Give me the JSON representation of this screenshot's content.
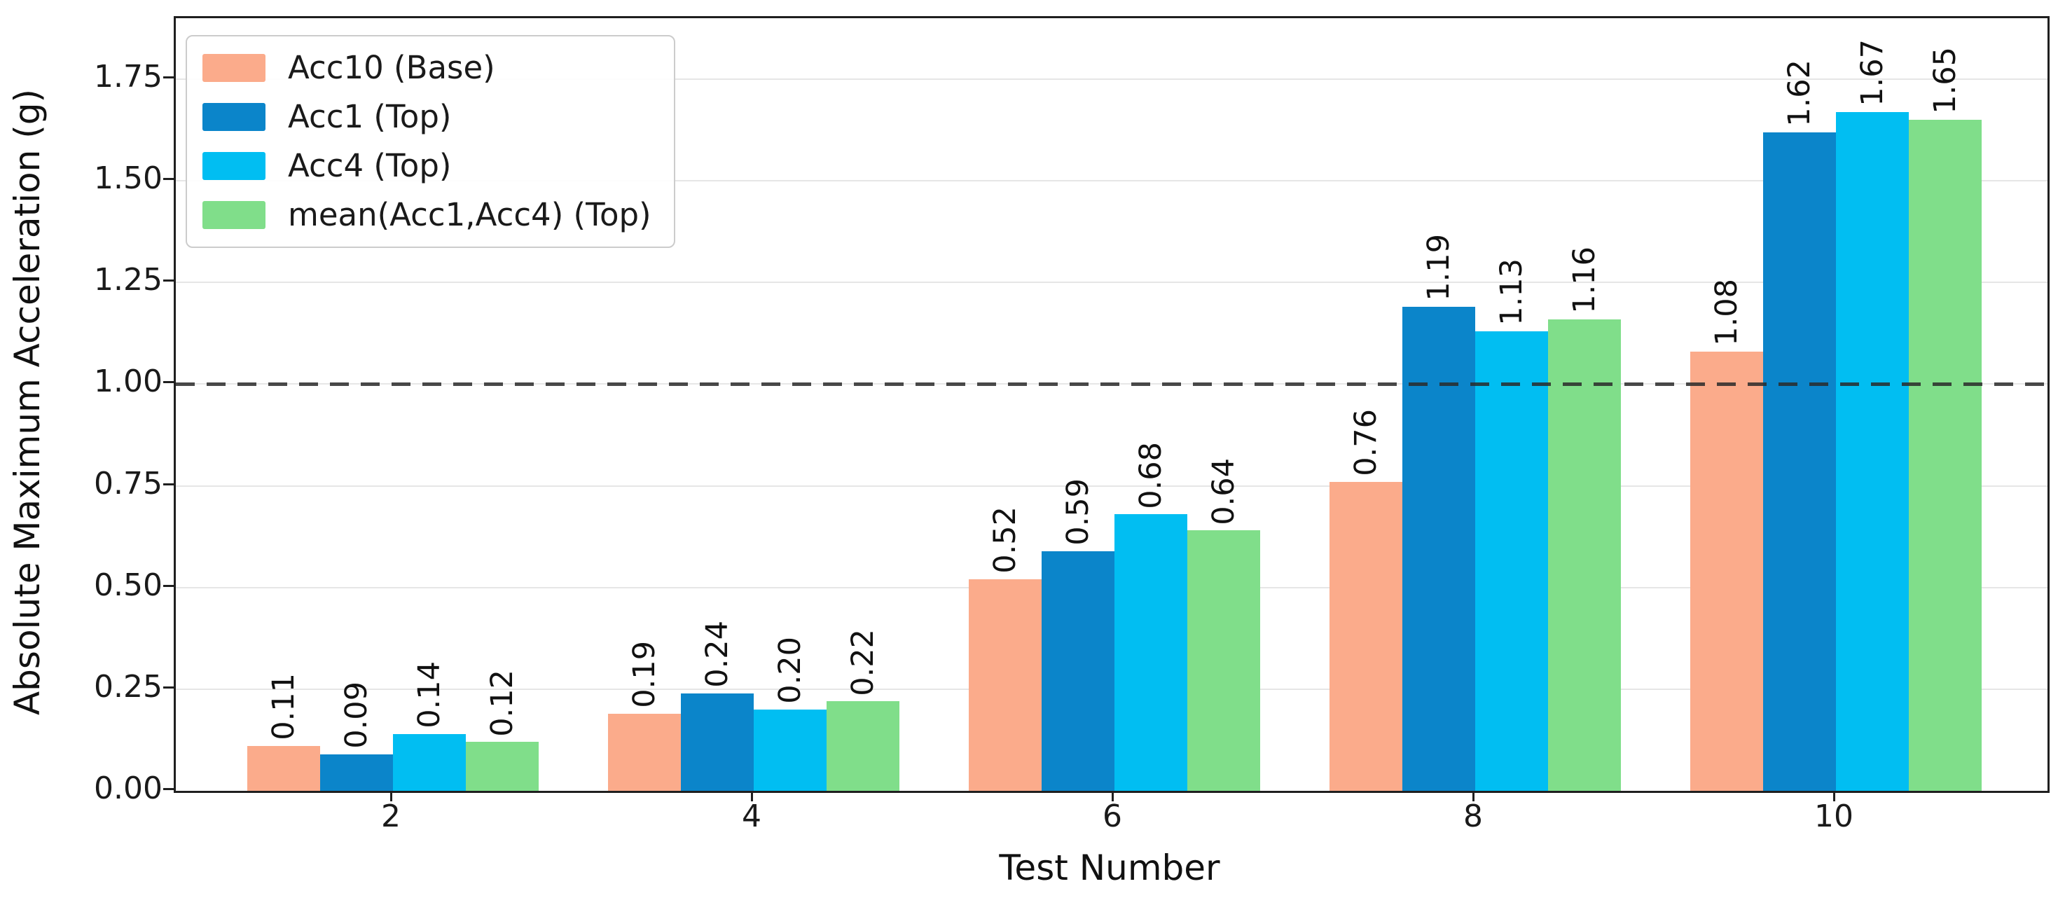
{
  "chart_data": {
    "type": "bar",
    "title": "",
    "xlabel": "Test Number",
    "ylabel": "Absolute Maximum Acceleration (g)",
    "categories": [
      "2",
      "4",
      "6",
      "8",
      "10"
    ],
    "series": [
      {
        "name": "Acc10 (Base)",
        "color": "#FBAB8B",
        "values": [
          0.11,
          0.19,
          0.52,
          0.76,
          1.08
        ]
      },
      {
        "name": "Acc1 (Top)",
        "color": "#0B85CA",
        "values": [
          0.09,
          0.24,
          0.59,
          1.19,
          1.62
        ]
      },
      {
        "name": "Acc4 (Top)",
        "color": "#01BEF2",
        "values": [
          0.14,
          0.2,
          0.68,
          1.13,
          1.67
        ]
      },
      {
        "name": "mean(Acc1,Acc4) (Top)",
        "color": "#80DE8A",
        "values": [
          0.12,
          0.22,
          0.64,
          1.16,
          1.65
        ]
      }
    ],
    "bar_label_decimals": 2,
    "bar_label_rotation_deg": 90,
    "ylim": [
      0,
      1.9
    ],
    "yticks": [
      "0.00",
      "0.25",
      "0.50",
      "0.75",
      "1.00",
      "1.25",
      "1.50",
      "1.75"
    ],
    "grid": true,
    "legend_position": "upper left",
    "threshold_line": {
      "value": 1.0,
      "style": "dashed",
      "color": "#2a2a2a"
    },
    "colors": {
      "grid": "#e6e6e6",
      "spine": "#1f1f1f",
      "text": "#111111",
      "legend_border": "#cccccc",
      "background": "#ffffff"
    }
  }
}
